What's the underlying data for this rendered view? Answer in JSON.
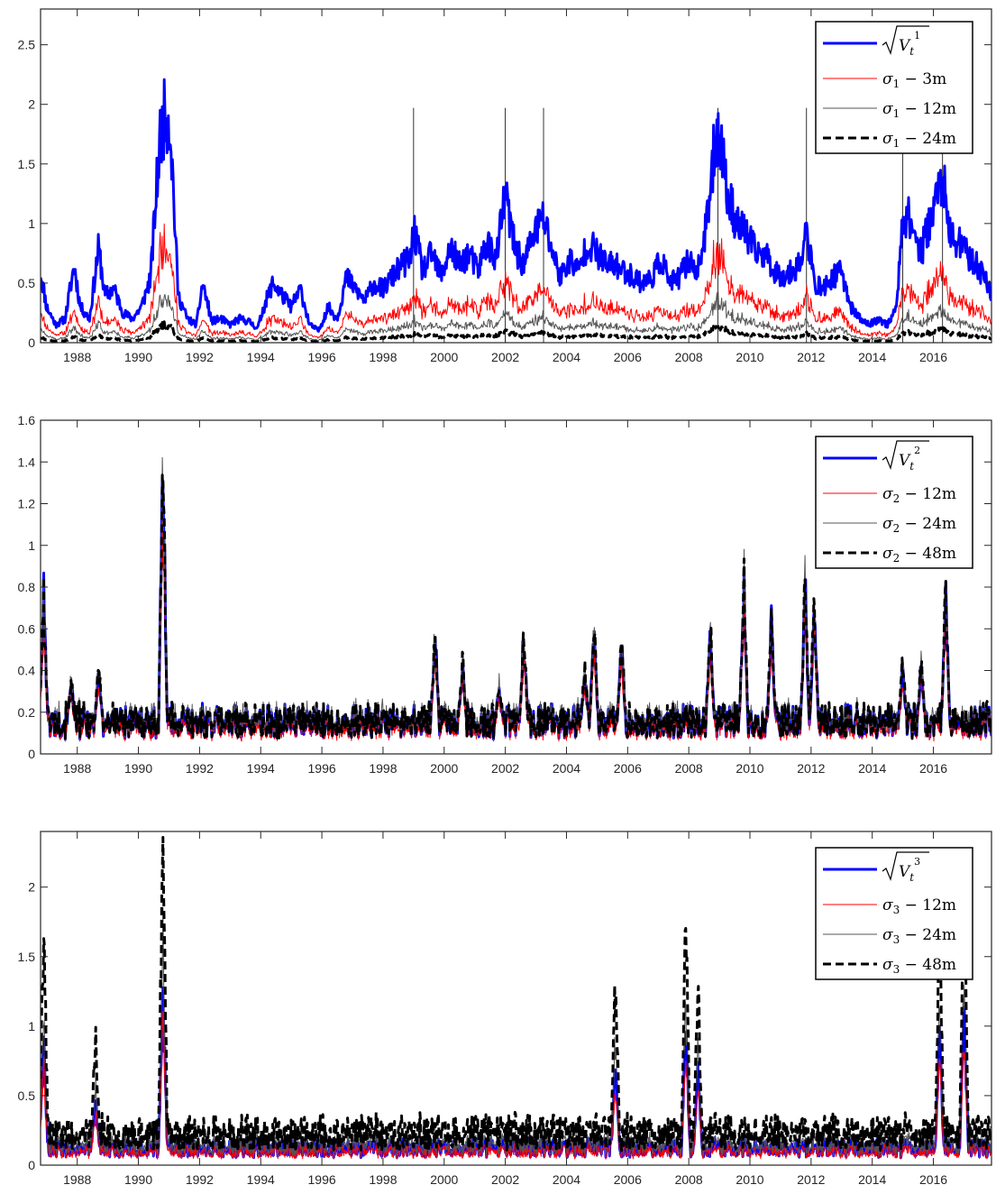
{
  "chart_data": [
    {
      "type": "line",
      "x_range": [
        1986.8,
        2017.9
      ],
      "ylim": [
        0,
        2.8
      ],
      "yticks": [
        0,
        0.5,
        1,
        1.5,
        2,
        2.5
      ],
      "ytick_labels": [
        "0",
        "0.5",
        "1",
        "1.5",
        "2",
        "2.5"
      ],
      "xticks": [
        1988,
        1990,
        1992,
        1994,
        1996,
        1998,
        2000,
        2002,
        2004,
        2006,
        2008,
        2010,
        2012,
        2014,
        2016
      ],
      "xtick_labels": [
        "1988",
        "1990",
        "1992",
        "1994",
        "1996",
        "1998",
        "2000",
        "2002",
        "2004",
        "2006",
        "2008",
        "2010",
        "2012",
        "2014",
        "2016"
      ],
      "legend_position": "top-right",
      "event_lines": [
        1999.0,
        2002.0,
        2003.25,
        2008.95,
        2011.85,
        2015.0,
        2016.3
      ],
      "series": [
        {
          "name": "√V_t^1",
          "label_symbol": "V",
          "label_sub": "t",
          "label_sup": "1",
          "color": "#0000ff",
          "style": "solid-thick",
          "x": [
            1986.8,
            1987.0,
            1987.3,
            1987.6,
            1987.9,
            1988.1,
            1988.4,
            1988.7,
            1988.9,
            1989.2,
            1989.5,
            1989.8,
            1990.1,
            1990.4,
            1990.7,
            1990.9,
            1991.05,
            1991.3,
            1991.6,
            1991.9,
            1992.1,
            1992.4,
            1992.7,
            1993.0,
            1993.3,
            1993.6,
            1993.9,
            1994.1,
            1994.4,
            1994.7,
            1995.0,
            1995.3,
            1995.6,
            1995.9,
            1996.2,
            1996.5,
            1996.8,
            1997.1,
            1997.4,
            1997.7,
            1998.0,
            1998.3,
            1998.6,
            1998.9,
            1999.0,
            1999.3,
            1999.6,
            1999.9,
            2000.2,
            2000.5,
            2000.8,
            2001.1,
            2001.4,
            2001.7,
            2002.0,
            2002.3,
            2002.6,
            2002.9,
            2003.25,
            2003.5,
            2003.8,
            2004.1,
            2004.4,
            2004.7,
            2005.0,
            2005.3,
            2005.6,
            2005.9,
            2006.2,
            2006.5,
            2006.8,
            2007.1,
            2007.4,
            2007.7,
            2008.0,
            2008.3,
            2008.6,
            2008.9,
            2009.0,
            2009.3,
            2009.6,
            2009.9,
            2010.2,
            2010.5,
            2010.8,
            2011.1,
            2011.4,
            2011.7,
            2011.85,
            2012.1,
            2012.4,
            2012.7,
            2013.0,
            2013.3,
            2013.6,
            2013.9,
            2014.2,
            2014.5,
            2014.8,
            2015.0,
            2015.3,
            2015.6,
            2015.9,
            2016.1,
            2016.3,
            2016.5,
            2016.8,
            2017.1,
            2017.4,
            2017.7,
            2017.9
          ],
          "y": [
            0.6,
            0.3,
            0.15,
            0.2,
            0.65,
            0.3,
            0.2,
            0.8,
            0.4,
            0.45,
            0.25,
            0.2,
            0.3,
            0.55,
            1.7,
            1.95,
            1.8,
            0.4,
            0.2,
            0.15,
            0.5,
            0.18,
            0.2,
            0.15,
            0.2,
            0.18,
            0.12,
            0.3,
            0.5,
            0.4,
            0.3,
            0.45,
            0.15,
            0.1,
            0.3,
            0.2,
            0.55,
            0.45,
            0.35,
            0.5,
            0.45,
            0.55,
            0.65,
            0.7,
            0.95,
            0.6,
            0.75,
            0.55,
            0.8,
            0.65,
            0.75,
            0.6,
            0.85,
            0.7,
            1.25,
            0.8,
            0.65,
            0.9,
            1.05,
            0.8,
            0.55,
            0.7,
            0.6,
            0.85,
            0.75,
            0.65,
            0.65,
            0.6,
            0.55,
            0.5,
            0.55,
            0.7,
            0.5,
            0.55,
            0.7,
            0.6,
            1.0,
            1.8,
            1.75,
            1.2,
            1.0,
            0.9,
            0.75,
            0.75,
            0.6,
            0.55,
            0.6,
            0.7,
            0.95,
            0.5,
            0.45,
            0.55,
            0.6,
            0.3,
            0.2,
            0.15,
            0.2,
            0.15,
            0.3,
            1.1,
            1.0,
            0.75,
            1.05,
            1.2,
            1.45,
            0.9,
            0.85,
            0.75,
            0.65,
            0.55,
            0.4
          ]
        },
        {
          "name": "σ1 − 3m",
          "label_symbol": "σ",
          "label_sub": "1",
          "label_suffix": "3m",
          "color": "#ff0000",
          "style": "thin",
          "ratio_of_first": 0.42
        },
        {
          "name": "σ1 − 12m",
          "label_symbol": "σ",
          "label_sub": "1",
          "label_suffix": "12m",
          "color": "#555555",
          "style": "thin",
          "ratio_of_first": 0.2
        },
        {
          "name": "σ1 − 24m",
          "label_symbol": "σ",
          "label_sub": "1",
          "label_suffix": "24m",
          "color": "#000000",
          "style": "dashed-thick",
          "ratio_of_first": 0.08
        }
      ]
    },
    {
      "type": "line",
      "x_range": [
        1986.8,
        2017.9
      ],
      "ylim": [
        0,
        1.6
      ],
      "yticks": [
        0,
        0.2,
        0.4,
        0.6,
        0.8,
        1,
        1.2,
        1.4,
        1.6
      ],
      "ytick_labels": [
        "0",
        "0.2",
        "0.4",
        "0.6",
        "0.8",
        "1",
        "1.2",
        "1.4",
        "1.6"
      ],
      "xticks": [
        1988,
        1990,
        1992,
        1994,
        1996,
        1998,
        2000,
        2002,
        2004,
        2006,
        2008,
        2010,
        2012,
        2014,
        2016
      ],
      "xtick_labels": [
        "1988",
        "1990",
        "1992",
        "1994",
        "1996",
        "1998",
        "2000",
        "2002",
        "2004",
        "2006",
        "2008",
        "2010",
        "2012",
        "2014",
        "2016"
      ],
      "legend_position": "top-right",
      "baseline": 0.15,
      "noise_amplitude": 0.07,
      "spikes": [
        {
          "x": 1986.9,
          "y": 0.82
        },
        {
          "x": 1987.8,
          "y": 0.35
        },
        {
          "x": 1988.7,
          "y": 0.42
        },
        {
          "x": 1990.8,
          "y": 1.6
        },
        {
          "x": 1999.7,
          "y": 0.6
        },
        {
          "x": 2000.6,
          "y": 0.45
        },
        {
          "x": 2001.8,
          "y": 0.32
        },
        {
          "x": 2002.6,
          "y": 0.6
        },
        {
          "x": 2004.6,
          "y": 0.42
        },
        {
          "x": 2004.9,
          "y": 0.62
        },
        {
          "x": 2005.8,
          "y": 0.58
        },
        {
          "x": 2008.7,
          "y": 0.62
        },
        {
          "x": 2009.8,
          "y": 0.88
        },
        {
          "x": 2010.7,
          "y": 0.68
        },
        {
          "x": 2011.8,
          "y": 0.88
        },
        {
          "x": 2012.1,
          "y": 0.78
        },
        {
          "x": 2015.0,
          "y": 0.45
        },
        {
          "x": 2015.6,
          "y": 0.45
        },
        {
          "x": 2016.4,
          "y": 0.85
        }
      ],
      "series": [
        {
          "name": "√V_t^2",
          "label_symbol": "V",
          "label_sub": "t",
          "label_sup": "2",
          "color": "#0000ff",
          "style": "solid-thick"
        },
        {
          "name": "σ2 − 12m",
          "label_symbol": "σ",
          "label_sub": "2",
          "label_suffix": "12m",
          "color": "#ff0000",
          "style": "thin"
        },
        {
          "name": "σ2 − 24m",
          "label_symbol": "σ",
          "label_sub": "2",
          "label_suffix": "24m",
          "color": "#555555",
          "style": "thin"
        },
        {
          "name": "σ2 − 48m",
          "label_symbol": "σ",
          "label_sub": "2",
          "label_suffix": "48m",
          "color": "#000000",
          "style": "dashed-thick"
        }
      ]
    },
    {
      "type": "line",
      "x_range": [
        1986.8,
        2017.9
      ],
      "ylim": [
        0,
        2.4
      ],
      "yticks": [
        0,
        0.5,
        1,
        1.5,
        2
      ],
      "ytick_labels": [
        "0",
        "0.5",
        "1",
        "1.5",
        "2"
      ],
      "xticks": [
        1988,
        1990,
        1992,
        1994,
        1996,
        1998,
        2000,
        2002,
        2004,
        2006,
        2008,
        2010,
        2012,
        2014,
        2016
      ],
      "xtick_labels": [
        "1988",
        "1990",
        "1992",
        "1994",
        "1996",
        "1998",
        "2000",
        "2002",
        "2004",
        "2006",
        "2008",
        "2010",
        "2012",
        "2014",
        "2016"
      ],
      "legend_position": "top-right",
      "baseline": 0.12,
      "noise_amplitude": 0.06,
      "spikes": [
        {
          "x": 1986.9,
          "y": 1.0
        },
        {
          "x": 1988.6,
          "y": 0.5
        },
        {
          "x": 1990.8,
          "y": 1.5
        },
        {
          "x": 2005.6,
          "y": 0.78
        },
        {
          "x": 2007.9,
          "y": 1.05
        },
        {
          "x": 2008.3,
          "y": 0.78
        },
        {
          "x": 2016.2,
          "y": 1.02
        },
        {
          "x": 2017.0,
          "y": 1.25
        }
      ],
      "series": [
        {
          "name": "√V_t^3",
          "label_symbol": "V",
          "label_sub": "t",
          "label_sup": "3",
          "color": "#0000ff",
          "style": "solid-thick"
        },
        {
          "name": "σ3 − 12m",
          "label_symbol": "σ",
          "label_sub": "3",
          "label_suffix": "12m",
          "color": "#ff0000",
          "style": "thin"
        },
        {
          "name": "σ3 − 24m",
          "label_symbol": "σ",
          "label_sub": "3",
          "label_suffix": "24m",
          "color": "#555555",
          "style": "thin"
        },
        {
          "name": "σ3 − 48m",
          "label_symbol": "σ",
          "label_sub": "3",
          "label_suffix": "48m",
          "color": "#000000",
          "style": "dashed-thick"
        }
      ]
    }
  ]
}
